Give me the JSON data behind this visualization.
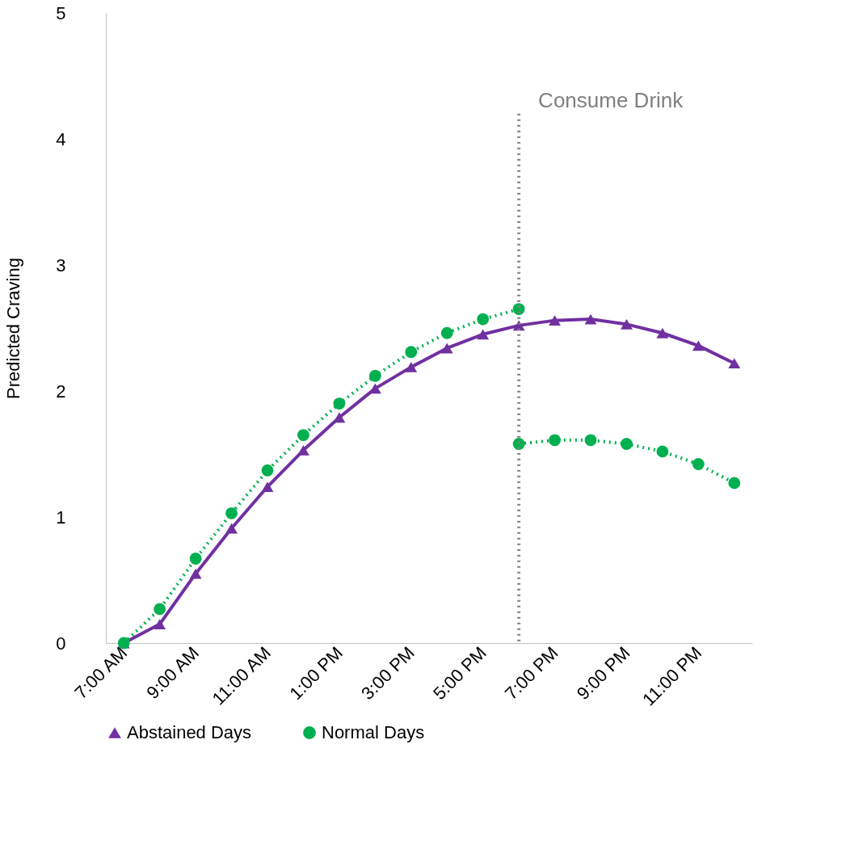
{
  "chart_data": {
    "type": "line",
    "ylabel": "Predicted Craving",
    "xlim": [
      6.5,
      24.5
    ],
    "ylim": [
      0,
      5
    ],
    "yticks": [
      0,
      1,
      2,
      3,
      4,
      5
    ],
    "xticks": [
      {
        "value": 7,
        "label": "7:00 AM"
      },
      {
        "value": 9,
        "label": "9:00 AM"
      },
      {
        "value": 11,
        "label": "11:00 AM"
      },
      {
        "value": 13,
        "label": "1:00 PM"
      },
      {
        "value": 15,
        "label": "3:00 PM"
      },
      {
        "value": 17,
        "label": "5:00 PM"
      },
      {
        "value": 19,
        "label": "7:00 PM"
      },
      {
        "value": 21,
        "label": "9:00 PM"
      },
      {
        "value": 23,
        "label": "11:00 PM"
      }
    ],
    "grid": false,
    "legend": "bottom",
    "series": [
      {
        "name": "Abstained Days",
        "color": "#7030a0",
        "marker": "triangle",
        "line_style": "solid",
        "x": [
          7,
          8,
          9,
          10,
          11,
          12,
          13,
          14,
          15,
          16,
          17,
          18,
          19,
          20,
          21,
          22,
          23,
          24
        ],
        "values": [
          0,
          0.15,
          0.55,
          0.91,
          1.24,
          1.53,
          1.79,
          2.02,
          2.19,
          2.34,
          2.45,
          2.52,
          2.56,
          2.57,
          2.53,
          2.46,
          2.36,
          2.22
        ]
      },
      {
        "name": "Normal Days",
        "color": "#00b050",
        "marker": "circle",
        "line_style": "dotted",
        "x": [
          7,
          8,
          9,
          10,
          11,
          12,
          13,
          14,
          15,
          16,
          17,
          18
        ],
        "values": [
          0,
          0.27,
          0.67,
          1.03,
          1.37,
          1.65,
          1.9,
          2.12,
          2.31,
          2.46,
          2.57,
          2.65
        ]
      },
      {
        "color": "#00b050",
        "marker": "circle",
        "line_style": "dotted",
        "x": [
          18,
          19,
          20,
          21,
          22,
          23,
          24
        ],
        "values": [
          1.58,
          1.61,
          1.61,
          1.58,
          1.52,
          1.42,
          1.27
        ]
      }
    ],
    "ref_lines": [
      {
        "axis": "x",
        "value": 18,
        "label": "Consume Drink",
        "color": "#808080",
        "line_style": "dotted"
      }
    ]
  }
}
